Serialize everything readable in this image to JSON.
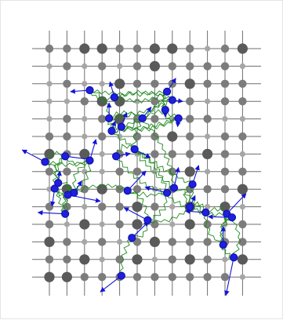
{
  "colors": {
    "grid_line": "#6e6e6e",
    "dot_dark": "#5a5a5a",
    "dot_mid": "#7c7c7c",
    "dot_light": "#a6a6a6",
    "node_fill": "#1f1fe0",
    "node_stroke": "#0c0c9c",
    "arrow": "#1414d4",
    "wire": "#1e8a1e",
    "background": "#ffffff",
    "frame_border": "#e4e4e4"
  },
  "grid": {
    "columns": 12,
    "rows": 14,
    "dot_sizes": [
      [
        1,
        1,
        2,
        2,
        1,
        1,
        2,
        2,
        1,
        0,
        1,
        2
      ],
      [
        0,
        1,
        0,
        1,
        0,
        1,
        2,
        1,
        1,
        1,
        1,
        0
      ],
      [
        0,
        1,
        0,
        0,
        2,
        1,
        1,
        1,
        2,
        1,
        1,
        1
      ],
      [
        0,
        0,
        1,
        2,
        2,
        0,
        1,
        0,
        1,
        0,
        1,
        1
      ],
      [
        0,
        1,
        0,
        1,
        2,
        1,
        1,
        0,
        1,
        1,
        0,
        0
      ],
      [
        1,
        1,
        0,
        1,
        0,
        1,
        1,
        2,
        1,
        0,
        1,
        1
      ],
      [
        2,
        1,
        2,
        0,
        1,
        0,
        1,
        1,
        1,
        2,
        1,
        0
      ],
      [
        1,
        1,
        0,
        0,
        1,
        1,
        0,
        1,
        2,
        0,
        1,
        1
      ],
      [
        0,
        2,
        1,
        2,
        1,
        1,
        0,
        1,
        1,
        1,
        1,
        2
      ],
      [
        1,
        1,
        0,
        1,
        1,
        2,
        1,
        0,
        2,
        0,
        2,
        0
      ],
      [
        1,
        0,
        2,
        0,
        1,
        2,
        1,
        0,
        2,
        1,
        0,
        1
      ],
      [
        2,
        1,
        0,
        1,
        0,
        1,
        2,
        1,
        1,
        1,
        1,
        1
      ],
      [
        1,
        1,
        2,
        0,
        1,
        2,
        0,
        1,
        2,
        1,
        0,
        2
      ],
      [
        2,
        2,
        1,
        1,
        1,
        1,
        1,
        1,
        1,
        1,
        1,
        0
      ]
    ]
  },
  "nodes": [
    {
      "x": 3.3,
      "y": 2.4,
      "dx": -1.1,
      "dy": 0.1
    },
    {
      "x": 4.7,
      "y": 2.9,
      "dx": -0.25,
      "dy": -1.1
    },
    {
      "x": 4.4,
      "y": 4.4,
      "dx": 0.0,
      "dy": -1.1
    },
    {
      "x": 4.55,
      "y": 5.3,
      "dx": 0.2,
      "dy": -0.7
    },
    {
      "x": 5.1,
      "y": 5.0,
      "dx": 0.3,
      "dy": -1.0
    },
    {
      "x": 6.3,
      "y": 4.4,
      "dx": 0.5,
      "dy": -0.8
    },
    {
      "x": 5.85,
      "y": 6.6,
      "dx": 0.9,
      "dy": 0.6
    },
    {
      "x": 4.8,
      "y": 7.1,
      "dx": 0.8,
      "dy": -0.2
    },
    {
      "x": 0.75,
      "y": 7.5,
      "dx": -1.3,
      "dy": -0.85
    },
    {
      "x": 1.9,
      "y": 7.1,
      "dx": 1.55,
      "dy": 0.25
    },
    {
      "x": 3.3,
      "y": 7.4,
      "dx": 0.35,
      "dy": -1.5
    },
    {
      "x": 1.5,
      "y": 9.0,
      "dx": 0.1,
      "dy": -0.85
    },
    {
      "x": 1.3,
      "y": 9.4,
      "dx": -0.15,
      "dy": 1.25
    },
    {
      "x": 2.4,
      "y": 9.7,
      "dx": 0.45,
      "dy": -0.85
    },
    {
      "x": 2.05,
      "y": 9.85,
      "dx": 1.85,
      "dy": 0.45
    },
    {
      "x": 1.9,
      "y": 11.2,
      "dx": -1.55,
      "dy": -0.1
    },
    {
      "x": 5.45,
      "y": 9.55,
      "dx": 1.05,
      "dy": -1.4
    },
    {
      "x": 7.7,
      "y": 9.7,
      "dx": -1.25,
      "dy": -0.4
    },
    {
      "x": 8.1,
      "y": 9.35,
      "dx": 0.25,
      "dy": -1.45
    },
    {
      "x": 9.15,
      "y": 9.1,
      "dx": 0.35,
      "dy": -1.35
    },
    {
      "x": 9.0,
      "y": 10.7,
      "dx": 0.3,
      "dy": -0.8
    },
    {
      "x": 11.1,
      "y": 11.2,
      "dx": 1.1,
      "dy": -1.45
    },
    {
      "x": 9.9,
      "y": 11.1,
      "dx": -1.15,
      "dy": -0.1
    },
    {
      "x": 11.4,
      "y": 11.45,
      "dx": -1.35,
      "dy": -0.05
    },
    {
      "x": 6.6,
      "y": 11.65,
      "dx": -1.35,
      "dy": -0.9
    },
    {
      "x": 5.7,
      "y": 12.9,
      "dx": 0.95,
      "dy": -1.15
    },
    {
      "x": 10.9,
      "y": 13.4,
      "dx": 0.0,
      "dy": -1.3
    },
    {
      "x": 11.5,
      "y": 14.3,
      "dx": -0.45,
      "dy": 2.7
    },
    {
      "x": 5.1,
      "y": 15.6,
      "dx": -1.2,
      "dy": 1.15
    },
    {
      "x": 7.7,
      "y": 2.5,
      "dx": 0.5,
      "dy": -0.95
    },
    {
      "x": 8.0,
      "y": 3.1,
      "dx": 0.6,
      "dy": 0.1
    },
    {
      "x": 8.35,
      "y": 4.4,
      "dx": -0.05,
      "dy": 0.6
    },
    {
      "x": 7.6,
      "y": 3.8,
      "dx": 0.0,
      "dy": 0.5
    }
  ],
  "wires": [
    [
      0,
      1
    ],
    [
      0,
      2
    ],
    [
      0,
      29
    ],
    [
      1,
      29
    ],
    [
      1,
      30
    ],
    [
      2,
      30
    ],
    [
      2,
      4
    ],
    [
      3,
      4
    ],
    [
      3,
      31
    ],
    [
      4,
      31
    ],
    [
      2,
      5
    ],
    [
      29,
      32
    ],
    [
      30,
      32
    ],
    [
      31,
      32
    ],
    [
      3,
      5
    ],
    [
      4,
      29
    ],
    [
      5,
      31
    ],
    [
      5,
      6
    ],
    [
      6,
      7
    ],
    [
      6,
      17
    ],
    [
      6,
      18
    ],
    [
      7,
      17
    ],
    [
      5,
      18
    ],
    [
      3,
      19
    ],
    [
      19,
      20
    ],
    [
      18,
      20
    ],
    [
      17,
      20
    ],
    [
      19,
      22
    ],
    [
      20,
      22
    ],
    [
      20,
      21
    ],
    [
      21,
      23
    ],
    [
      22,
      23
    ],
    [
      21,
      26
    ],
    [
      22,
      26
    ],
    [
      23,
      27
    ],
    [
      26,
      27
    ],
    [
      23,
      26
    ],
    [
      8,
      9
    ],
    [
      8,
      10
    ],
    [
      9,
      10
    ],
    [
      8,
      11
    ],
    [
      9,
      12
    ],
    [
      10,
      13
    ],
    [
      11,
      14
    ],
    [
      12,
      14
    ],
    [
      13,
      14
    ],
    [
      12,
      15
    ],
    [
      14,
      15
    ],
    [
      9,
      11
    ],
    [
      10,
      14
    ],
    [
      11,
      15
    ],
    [
      16,
      13
    ],
    [
      16,
      24
    ],
    [
      16,
      17
    ],
    [
      24,
      20
    ],
    [
      24,
      25
    ],
    [
      25,
      28
    ],
    [
      24,
      17
    ]
  ]
}
